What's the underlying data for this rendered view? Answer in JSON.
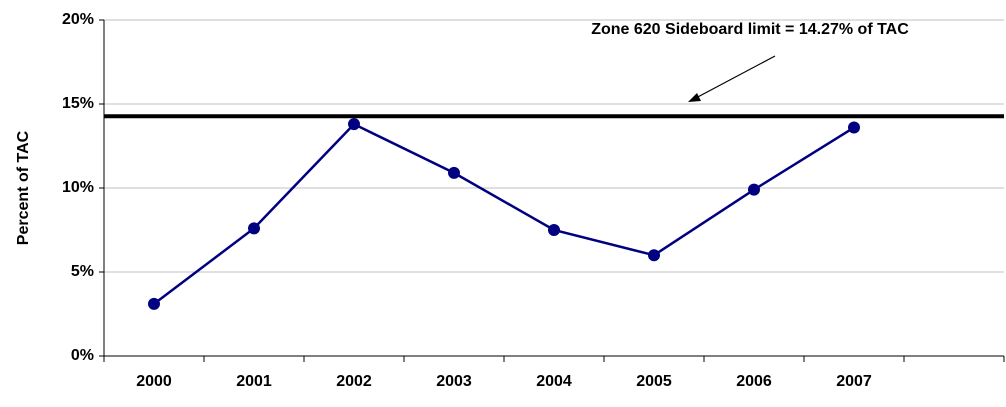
{
  "chart_data": {
    "type": "line",
    "ylabel": "Percent of TAC",
    "categories": [
      "2000",
      "2001",
      "2002",
      "2003",
      "2004",
      "2005",
      "2006",
      "2007",
      null
    ],
    "series": [
      {
        "name": "Percent of TAC",
        "color": "#000080",
        "values": [
          3.1,
          7.6,
          13.8,
          10.9,
          7.5,
          6.0,
          9.9,
          13.6,
          null
        ]
      }
    ],
    "ylim": [
      0,
      20
    ],
    "yticks": [
      {
        "value": 0,
        "label": "0%"
      },
      {
        "value": 5,
        "label": "5%"
      },
      {
        "value": 10,
        "label": "10%"
      },
      {
        "value": 15,
        "label": "15%"
      },
      {
        "value": 20,
        "label": "20%"
      }
    ],
    "grid": true,
    "hline": {
      "value": 14.27,
      "color": "#000000"
    },
    "annotation": "Zone 620 Sideboard limit = 14.27% of TAC"
  }
}
